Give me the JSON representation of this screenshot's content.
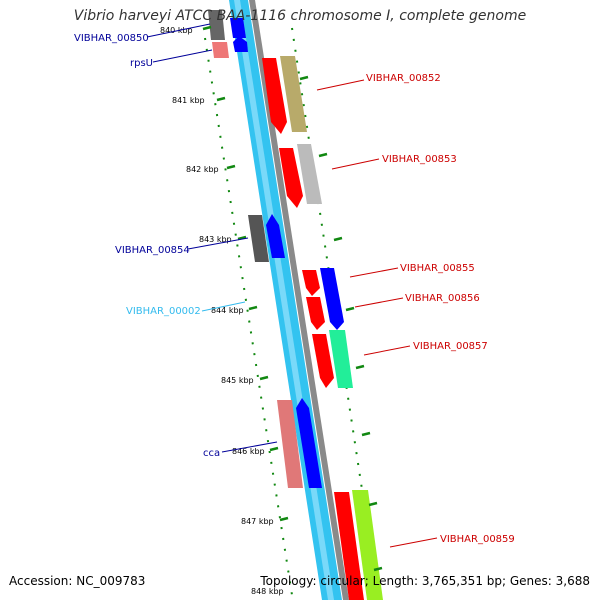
{
  "title": "Vibrio harveyi ATCC BAA-1116 chromosome I, complete genome",
  "accession": "Accession: NC_009783",
  "summary": "Topology: circular; Length: 3,765,351 bp; Genes: 3,688",
  "colors": {
    "outer_track": "#33c3f0",
    "inner_track": "#888888",
    "forward_gene": "#0000ff",
    "cds_red": "#ff0000",
    "scale_dots": "#118811",
    "label_red": "#cc0000",
    "label_blue": "#000099",
    "label_cyan": "#33bbee"
  },
  "scale_labels": [
    "840 kbp",
    "841 kbp",
    "842 kbp",
    "843 kbp",
    "844 kbp",
    "845 kbp",
    "846 kbp",
    "847 kbp",
    "848 kbp"
  ],
  "gene_labels": [
    {
      "name": "VIBHAR_00850",
      "color": "#000099"
    },
    {
      "name": "rpsU",
      "color": "#000099"
    },
    {
      "name": "VIBHAR_00852",
      "color": "#cc0000"
    },
    {
      "name": "VIBHAR_00853",
      "color": "#cc0000"
    },
    {
      "name": "VIBHAR_00854",
      "color": "#000099"
    },
    {
      "name": "VIBHAR_00855",
      "color": "#cc0000"
    },
    {
      "name": "VIBHAR_00856",
      "color": "#cc0000"
    },
    {
      "name": "VIBHAR_00002",
      "color": "#33bbee"
    },
    {
      "name": "VIBHAR_00857",
      "color": "#cc0000"
    },
    {
      "name": "cca",
      "color": "#000099"
    },
    {
      "name": "VIBHAR_00859",
      "color": "#cc0000"
    }
  ]
}
